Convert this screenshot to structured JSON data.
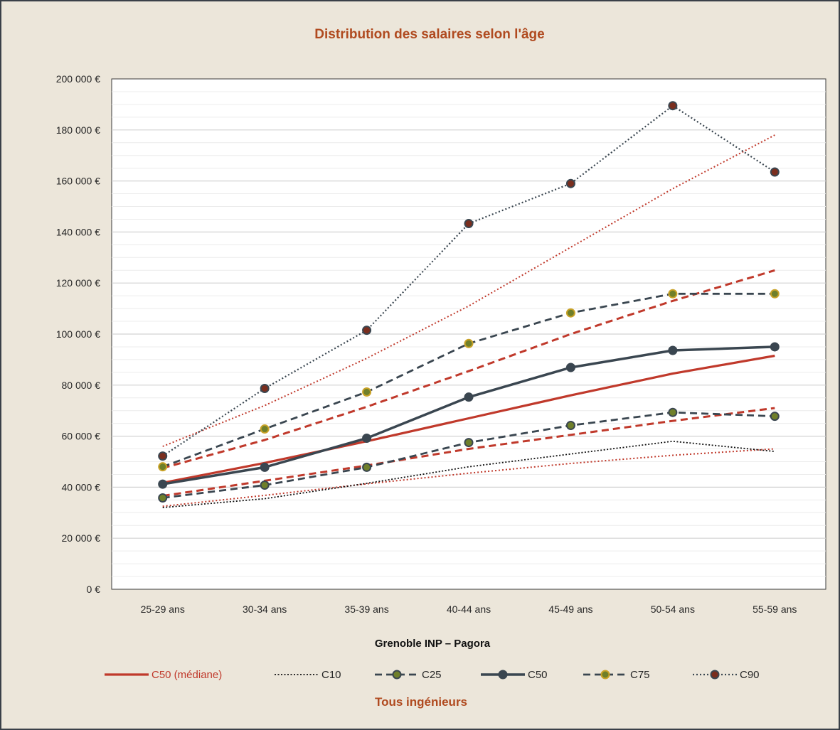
{
  "chart_data": {
    "type": "line",
    "title": "Distribution des salaires selon l'âge",
    "xlabel": "Grenoble INP – Pagora",
    "ylabel": "",
    "footer": {
      "part1": "Tous",
      "part2": " ingénieurs"
    },
    "categories": [
      "25-29 ans",
      "30-34 ans",
      "35-39 ans",
      "40-44 ans",
      "45-49 ans",
      "50-54 ans",
      "55-59 ans"
    ],
    "ylim": [
      0,
      200000
    ],
    "yticks": [
      0,
      20000,
      40000,
      60000,
      80000,
      100000,
      120000,
      140000,
      160000,
      180000,
      200000
    ],
    "ytick_labels": [
      "0 €",
      "20 000 €",
      "40 000 €",
      "60 000 €",
      "80 000 €",
      "100 000 €",
      "120 000 €",
      "140 000 €",
      "160 000 €",
      "180 000 €",
      "200 000 €"
    ],
    "grid": true,
    "legend_position": "bottom",
    "colors": {
      "red": "#c0392b",
      "dark": "#3a4650",
      "black": "#111111",
      "title": "#b04a1f",
      "marker_olive": "#6f7f2a",
      "marker_brown": "#7a2e1e"
    },
    "series": [
      {
        "name": "C50 (médiane)",
        "style": "red-solid",
        "values": [
          41700,
          49500,
          58000,
          67000,
          76000,
          84500,
          91500
        ]
      },
      {
        "name": "",
        "style": "red-dashed",
        "values": [
          36600,
          42500,
          48500,
          55000,
          60500,
          66000,
          71000
        ]
      },
      {
        "name": "",
        "style": "red-dashed",
        "values": [
          47500,
          58500,
          71500,
          85500,
          100000,
          113000,
          125000
        ]
      },
      {
        "name": "",
        "style": "red-dotted",
        "values": [
          32500,
          36800,
          41300,
          45500,
          49300,
          52500,
          55000
        ]
      },
      {
        "name": "",
        "style": "red-dotted",
        "values": [
          56000,
          72000,
          90500,
          111000,
          134000,
          157000,
          178000
        ]
      },
      {
        "name": "C10",
        "style": "black-dotted",
        "values": [
          32000,
          35500,
          41500,
          48000,
          53000,
          58000,
          54000
        ]
      },
      {
        "name": "C25",
        "style": "dark-dashed-marker",
        "values": [
          35800,
          40800,
          47800,
          57500,
          64200,
          69300,
          67800
        ]
      },
      {
        "name": "C50",
        "style": "dark-solid-marker",
        "values": [
          41200,
          47800,
          59200,
          75300,
          86900,
          93600,
          95000
        ]
      },
      {
        "name": "C75",
        "style": "dark-dashed-marker-gold",
        "values": [
          48000,
          62800,
          77300,
          96300,
          108300,
          115800,
          115800
        ]
      },
      {
        "name": "C90",
        "style": "dark-dotted-marker",
        "values": [
          52200,
          78700,
          101500,
          143300,
          159000,
          189500,
          163500
        ]
      }
    ]
  }
}
